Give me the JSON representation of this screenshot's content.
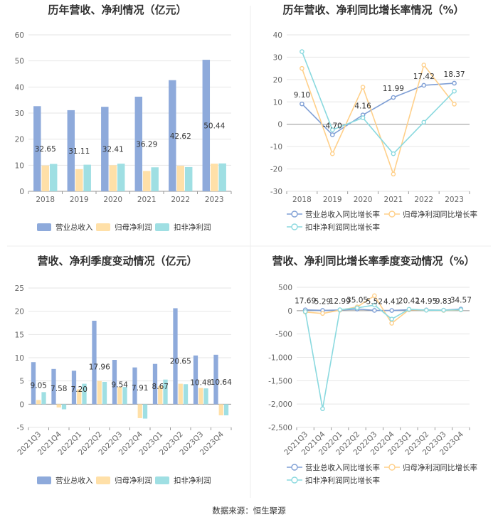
{
  "source": "数据来源：恒生聚源",
  "colors": {
    "revenue": "#8eaadb",
    "netprofit": "#ffe0a8",
    "deducted": "#9fdfe3",
    "revenue_line": "#7f9fd5",
    "netprofit_line": "#ffd08a",
    "deducted_line": "#8ad9df",
    "grid": "#e6e6e6",
    "axis": "#999999"
  },
  "chart_data": [
    {
      "id": "annual-bar",
      "type": "bar",
      "title": "历年营收、净利情况（亿元）",
      "categories": [
        "2018",
        "2019",
        "2020",
        "2021",
        "2022",
        "2023"
      ],
      "ylim": [
        0,
        60
      ],
      "yticks": [
        0,
        10,
        20,
        30,
        40,
        50,
        60
      ],
      "series": [
        {
          "name": "营业总收入",
          "color_key": "revenue",
          "values": [
            32.65,
            31.11,
            32.41,
            36.29,
            42.62,
            50.44
          ],
          "labels": [
            "32.65",
            "31.11",
            "32.41",
            "36.29",
            "42.62",
            "50.44"
          ]
        },
        {
          "name": "归母净利润",
          "color_key": "netprofit",
          "values": [
            9.9,
            8.5,
            10.0,
            7.8,
            9.8,
            10.6
          ]
        },
        {
          "name": "扣非净利润",
          "color_key": "deducted",
          "values": [
            10.5,
            10.2,
            10.6,
            9.2,
            9.3,
            10.7
          ]
        }
      ]
    },
    {
      "id": "annual-growth",
      "type": "line",
      "title": "历年营收、净利同比增长率情况（%）",
      "categories": [
        "2018",
        "2019",
        "2020",
        "2021",
        "2022",
        "2023"
      ],
      "ylim": [
        -30,
        40
      ],
      "yticks": [
        -30,
        -20,
        -10,
        0,
        10,
        20,
        30,
        40
      ],
      "series": [
        {
          "name": "营业总收入同比增长率",
          "color_key": "revenue_line",
          "values": [
            9.1,
            -4.7,
            4.16,
            11.99,
            17.42,
            18.37
          ],
          "labels": [
            "9.10",
            "-4.70",
            "4.16",
            "11.99",
            "17.42",
            "18.37"
          ]
        },
        {
          "name": "归母净利润同比增长率",
          "color_key": "netprofit_line",
          "values": [
            25.0,
            -13.2,
            16.6,
            -22.3,
            26.5,
            9.0
          ]
        },
        {
          "name": "扣非净利润同比增长率",
          "color_key": "deducted_line",
          "values": [
            32.5,
            -2.5,
            2.9,
            -13.2,
            0.9,
            14.8
          ]
        }
      ]
    },
    {
      "id": "quarterly-bar",
      "type": "bar",
      "title": "营收、净利季度变动情况（亿元）",
      "categories": [
        "2021Q3",
        "2021Q4",
        "2022Q1",
        "2022Q2",
        "2022Q3",
        "2022Q4",
        "2023Q1",
        "2023Q2",
        "2023Q3",
        "2023Q4"
      ],
      "ylim": [
        -5,
        25
      ],
      "yticks": [
        -5,
        0,
        5,
        10,
        15,
        20,
        25
      ],
      "series": [
        {
          "name": "营业总收入",
          "color_key": "revenue",
          "values": [
            9.05,
            7.58,
            7.2,
            17.96,
            9.54,
            7.91,
            8.67,
            20.65,
            10.48,
            10.64
          ],
          "labels": [
            "9.05",
            "7.58",
            "7.20",
            "17.96",
            "9.54",
            "7.91",
            "8.67",
            "20.65",
            "10.48",
            "10.64"
          ]
        },
        {
          "name": "归母净利润",
          "color_key": "netprofit",
          "values": [
            0.9,
            -0.7,
            3.2,
            5.0,
            3.7,
            -3.0,
            3.9,
            4.4,
            3.5,
            -2.4
          ]
        },
        {
          "name": "扣非净利润",
          "color_key": "deducted",
          "values": [
            2.6,
            -1.1,
            4.4,
            4.8,
            3.7,
            -3.1,
            5.3,
            4.3,
            3.4,
            -2.4
          ]
        }
      ]
    },
    {
      "id": "quarterly-growth",
      "type": "line",
      "title": "营收、净利同比增长率季度变动情况（%）",
      "categories": [
        "2021Q3",
        "2021Q4",
        "2022Q1",
        "2022Q2",
        "2022Q3",
        "2022Q4",
        "2023Q1",
        "2023Q2",
        "2023Q3",
        "2023Q4"
      ],
      "ylim": [
        -2500,
        500
      ],
      "yticks": [
        -2500,
        -2000,
        -1500,
        -1000,
        -500,
        0,
        500
      ],
      "series": [
        {
          "name": "营业总收入同比增长率",
          "color_key": "revenue_line",
          "values": [
            17.69,
            5.29,
            12.99,
            35.05,
            5.52,
            4.41,
            20.42,
            14.95,
            9.83,
            34.57
          ],
          "labels": [
            "17.69",
            "5.29",
            "12.99",
            "35.05",
            "5.52",
            "4.41",
            "20.42",
            "14.95",
            "9.83",
            "34.57"
          ]
        },
        {
          "name": "归母净利润同比增长率",
          "color_key": "netprofit_line",
          "values": [
            -30,
            -60,
            10,
            80,
            320,
            -270,
            20,
            10,
            5,
            15
          ]
        },
        {
          "name": "扣非净利润同比增长率",
          "color_key": "deducted_line",
          "values": [
            -20,
            -2100,
            20,
            60,
            120,
            -180,
            30,
            10,
            10,
            20
          ]
        }
      ]
    }
  ]
}
